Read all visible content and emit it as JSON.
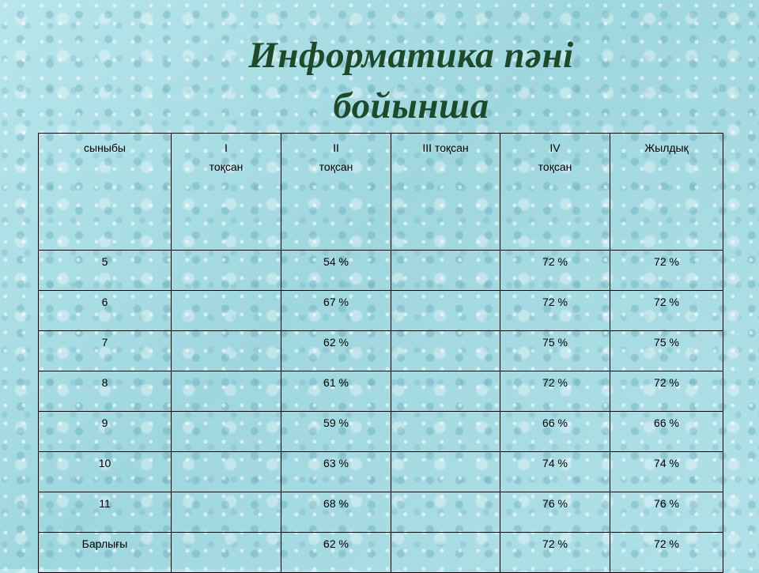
{
  "title": {
    "line1": "Информатика пәні",
    "line2": "бойынша"
  },
  "table": {
    "headers": [
      {
        "line1": "сыныбы",
        "line2": ""
      },
      {
        "line1": "I",
        "line2": "тоқсан"
      },
      {
        "line1": "II",
        "line2": "тоқсан"
      },
      {
        "line1": "III тоқсан",
        "line2": ""
      },
      {
        "line1": "IV",
        "line2": "тоқсан"
      },
      {
        "line1": "Жылдық",
        "line2": ""
      }
    ],
    "rows": [
      {
        "class": "5",
        "q1": "",
        "q2": "54 %",
        "q3": "",
        "q4": "72 %",
        "year": "72 %"
      },
      {
        "class": "6",
        "q1": "",
        "q2": "67 %",
        "q3": "",
        "q4": "72 %",
        "year": "72 %"
      },
      {
        "class": "7",
        "q1": "",
        "q2": "62 %",
        "q3": "",
        "q4": "75 %",
        "year": "75 %"
      },
      {
        "class": "8",
        "q1": "",
        "q2": "61 %",
        "q3": "",
        "q4": "72 %",
        "year": "72 %"
      },
      {
        "class": "9",
        "q1": "",
        "q2": "59 %",
        "q3": "",
        "q4": "66 %",
        "year": "66 %"
      },
      {
        "class": "10",
        "q1": "",
        "q2": "63 %",
        "q3": "",
        "q4": "74 %",
        "year": "74 %"
      },
      {
        "class": "11",
        "q1": "",
        "q2": "68 %",
        "q3": "",
        "q4": "76 %",
        "year": "76 %"
      },
      {
        "class": "Барлығы",
        "q1": "",
        "q2": "62 %",
        "q3": "",
        "q4": "72 %",
        "year": "72 %"
      }
    ]
  }
}
